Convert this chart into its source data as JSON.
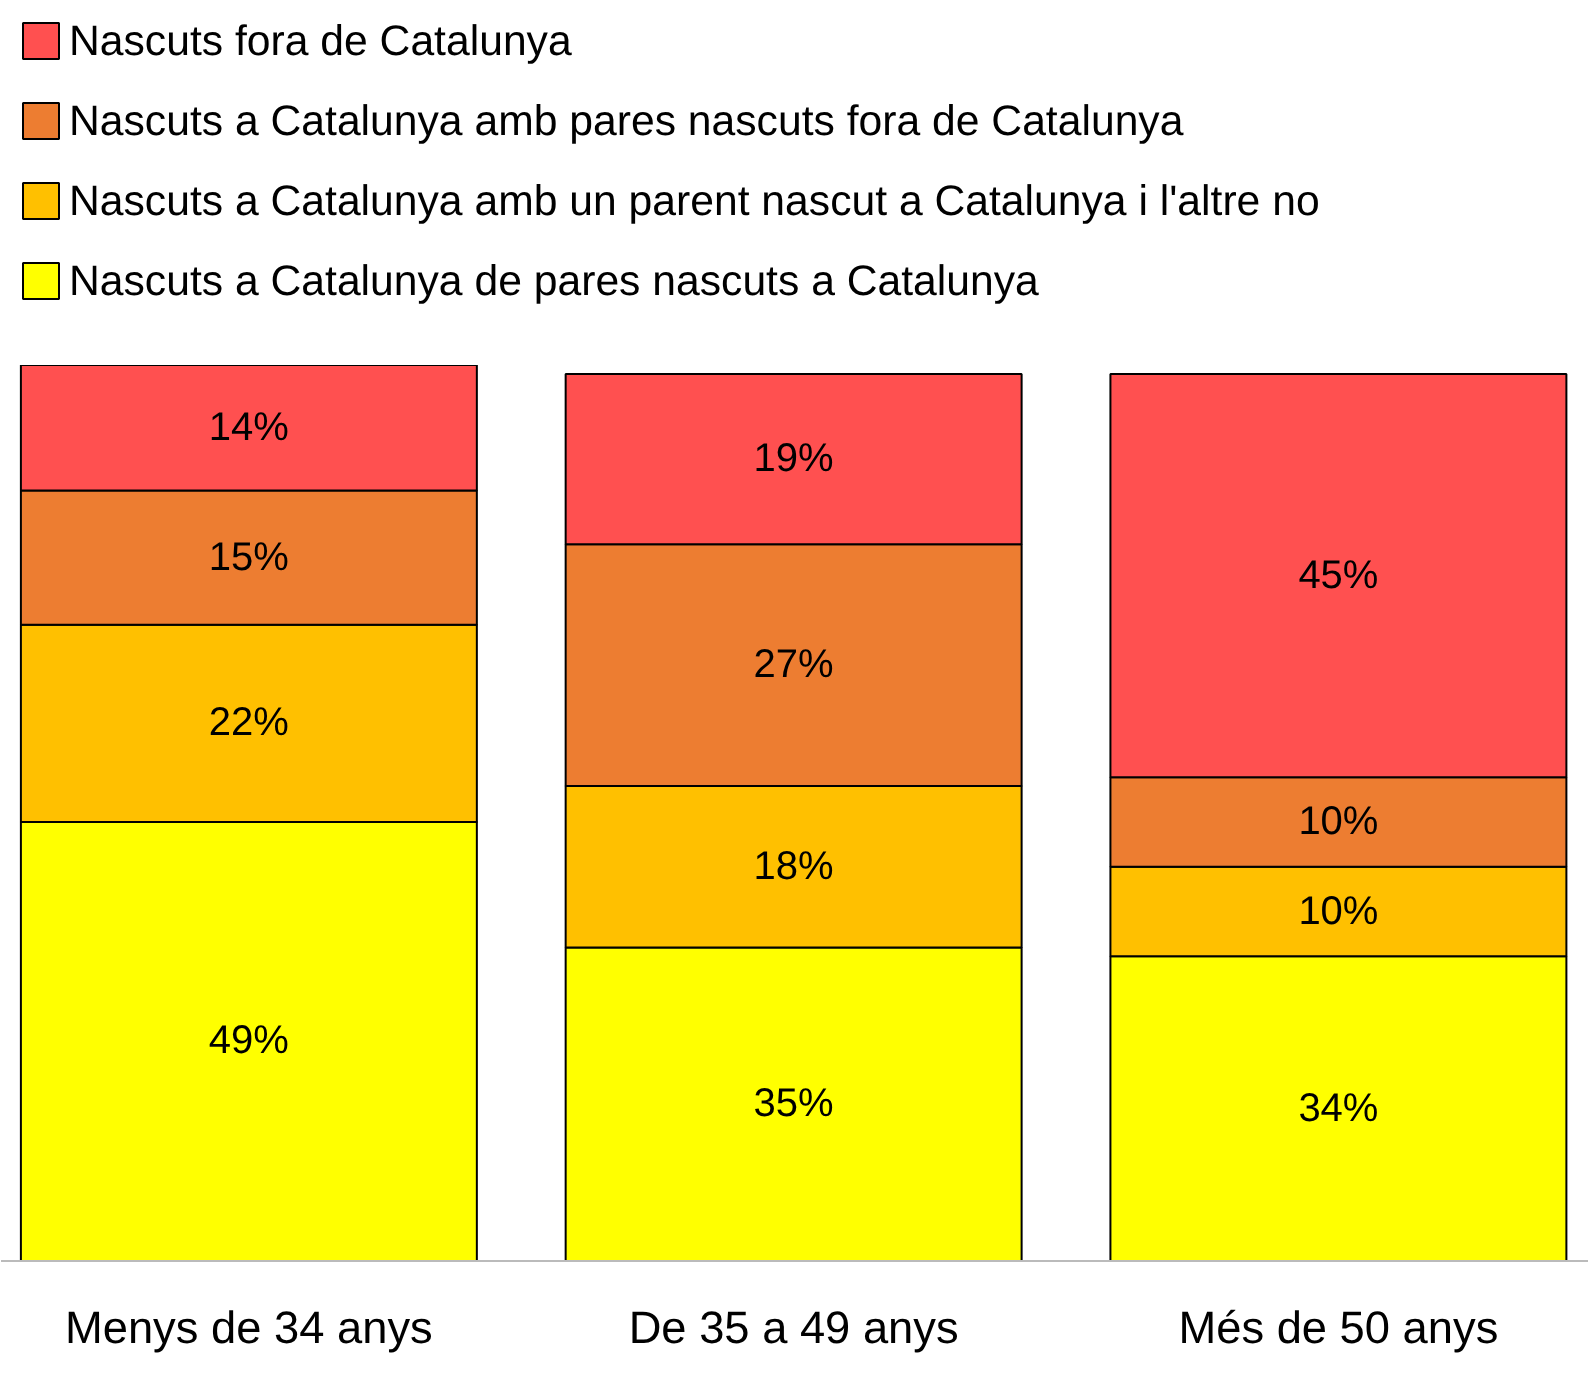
{
  "chart_data": {
    "type": "bar",
    "stacked": true,
    "categories": [
      "Menys de 34 anys",
      "De 35 a 49 anys",
      "Més de 50 anys"
    ],
    "legend": "top",
    "grid": false,
    "series": [
      {
        "name": "Nascuts a Catalunya de pares nascuts a Catalunya",
        "color": "#ffff00",
        "values": [
          49,
          35,
          34
        ],
        "value_labels": [
          "49%",
          "35%",
          "34%"
        ]
      },
      {
        "name": "Nascuts a Catalunya amb un parent nascut a Catalunya i l'altre no",
        "color": "#ffc000",
        "values": [
          22,
          18,
          10
        ],
        "value_labels": [
          "22%",
          "18%",
          "10%"
        ]
      },
      {
        "name": "Nascuts a Catalunya amb pares nascuts fora de Catalunya",
        "color": "#ed7d31",
        "values": [
          15,
          27,
          10
        ],
        "value_labels": [
          "15%",
          "27%",
          "10%"
        ]
      },
      {
        "name": "Nascuts fora de Catalunya",
        "color": "#ff5050",
        "values": [
          14,
          19,
          45
        ],
        "value_labels": [
          "14%",
          "19%",
          "45%"
        ]
      }
    ]
  }
}
